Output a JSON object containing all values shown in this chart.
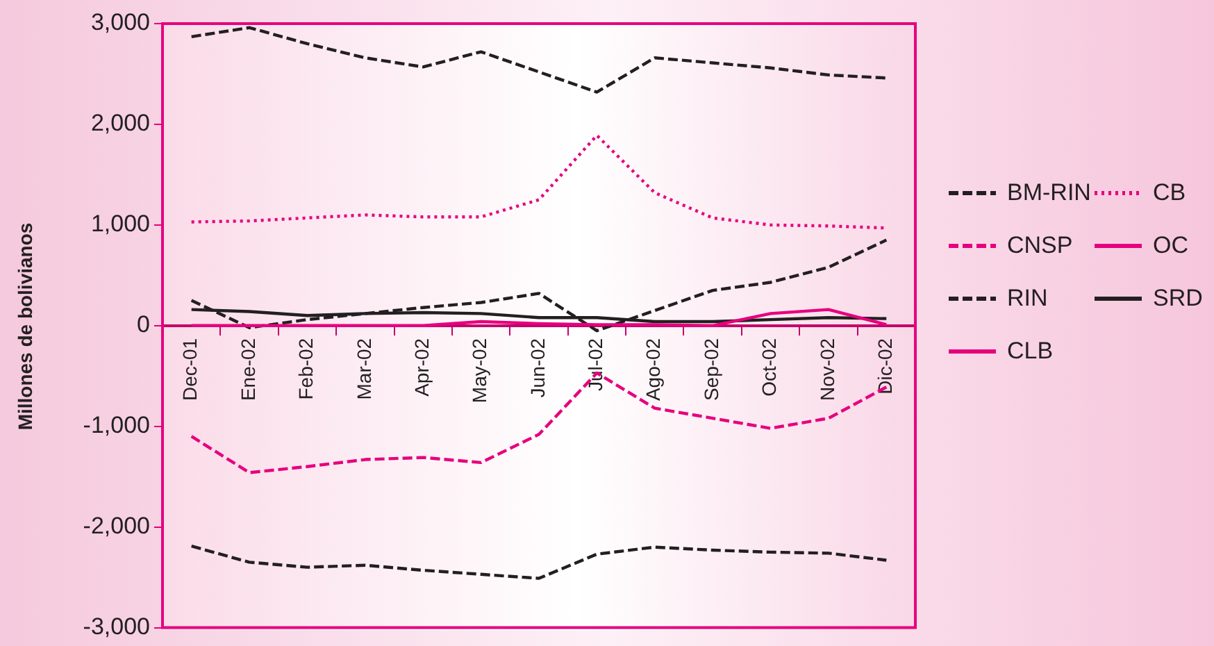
{
  "chart_data": {
    "type": "line",
    "ylabel": "Millones de bolivianos",
    "categories": [
      "Dec-01",
      "Ene-02",
      "Feb-02",
      "Mar-02",
      "Apr-02",
      "May-02",
      "Jun-02",
      "Jul-02",
      "Ago-02",
      "Sep-02",
      "Oct-02",
      "Nov-02",
      "Dic-02"
    ],
    "ylim": [
      -3000,
      3000
    ],
    "yticks": [
      {
        "value": -3000,
        "label": "-3,000"
      },
      {
        "value": -2000,
        "label": "-2,000"
      },
      {
        "value": -1000,
        "label": "-1,000"
      },
      0,
      {
        "value": 1000,
        "label": "1,000"
      },
      {
        "value": 2000,
        "label": "2,000"
      },
      {
        "value": 3000,
        "label": "3,000"
      }
    ],
    "grid": false,
    "legend": "right",
    "marker": "none",
    "series": [
      {
        "name": "BM-RIN",
        "color": "#231f20",
        "line_style": "dashed",
        "values": [
          -2190,
          -2350,
          -2400,
          -2380,
          -2430,
          -2470,
          -2510,
          -2270,
          -2200,
          -2230,
          -2250,
          -2260,
          -2330
        ]
      },
      {
        "name": "CB",
        "color": "#e6007e",
        "line_style": "dotted",
        "values": [
          1030,
          1040,
          1070,
          1100,
          1080,
          1080,
          1250,
          1890,
          1320,
          1070,
          1000,
          990,
          970
        ]
      },
      {
        "name": "CNSP",
        "color": "#e6007e",
        "line_style": "dashed",
        "values": [
          -1100,
          -1460,
          -1400,
          -1330,
          -1310,
          -1360,
          -1080,
          -470,
          -820,
          -920,
          -1020,
          -920,
          -610
        ]
      },
      {
        "name": "OC",
        "color": "#e6007e",
        "line_style": "solid",
        "values": [
          0,
          0,
          0,
          0,
          0,
          40,
          20,
          10,
          10,
          0,
          120,
          160,
          10
        ]
      },
      {
        "name": "RIN",
        "color": "#231f20",
        "line_style": "dashed",
        "values": [
          2870,
          2960,
          2800,
          2660,
          2570,
          2720,
          2520,
          2320,
          2660,
          2610,
          2560,
          2490,
          2460
        ]
      },
      {
        "name": "SRD",
        "color": "#231f20",
        "line_style": "solid",
        "values": [
          160,
          140,
          100,
          120,
          130,
          120,
          80,
          80,
          40,
          40,
          60,
          80,
          70
        ]
      },
      {
        "name": "CLB",
        "color": "#e6007e",
        "line_style": "solid",
        "values": [
          null,
          null,
          null,
          null,
          null,
          null,
          null,
          null,
          null,
          null,
          null,
          null,
          null
        ]
      },
      {
        "color": "#231f20",
        "line_style": "dashed",
        "values": [
          250,
          -20,
          60,
          120,
          180,
          230,
          320,
          -50,
          150,
          350,
          430,
          580,
          850
        ]
      }
    ]
  }
}
